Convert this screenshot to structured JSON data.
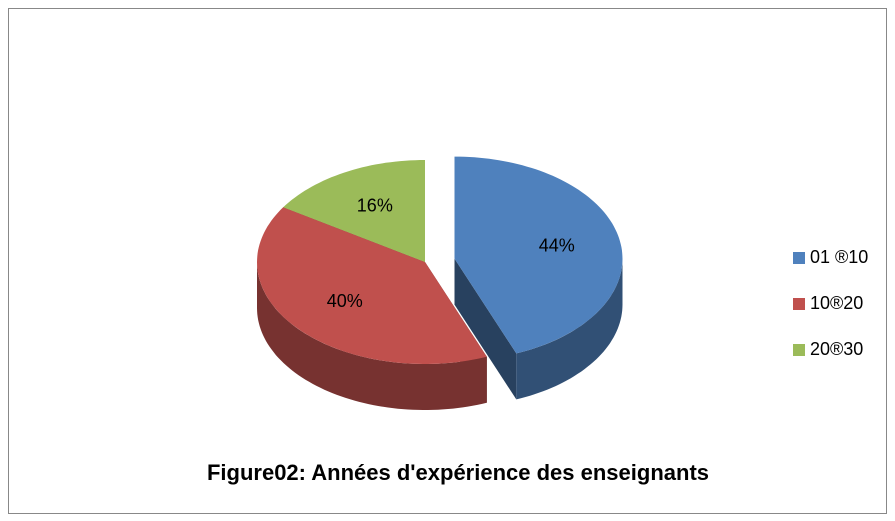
{
  "chart_data": {
    "type": "pie",
    "title": "Figure02: Années d'expérience des enseignants",
    "categories": [
      "01 ®10",
      "10®20",
      "20®30"
    ],
    "values": [
      44,
      40,
      16
    ],
    "value_labels": [
      "44%",
      "40%",
      "16%"
    ],
    "colors": [
      "#4f81bd",
      "#c0504d",
      "#9bbb59"
    ],
    "legend": "right"
  }
}
